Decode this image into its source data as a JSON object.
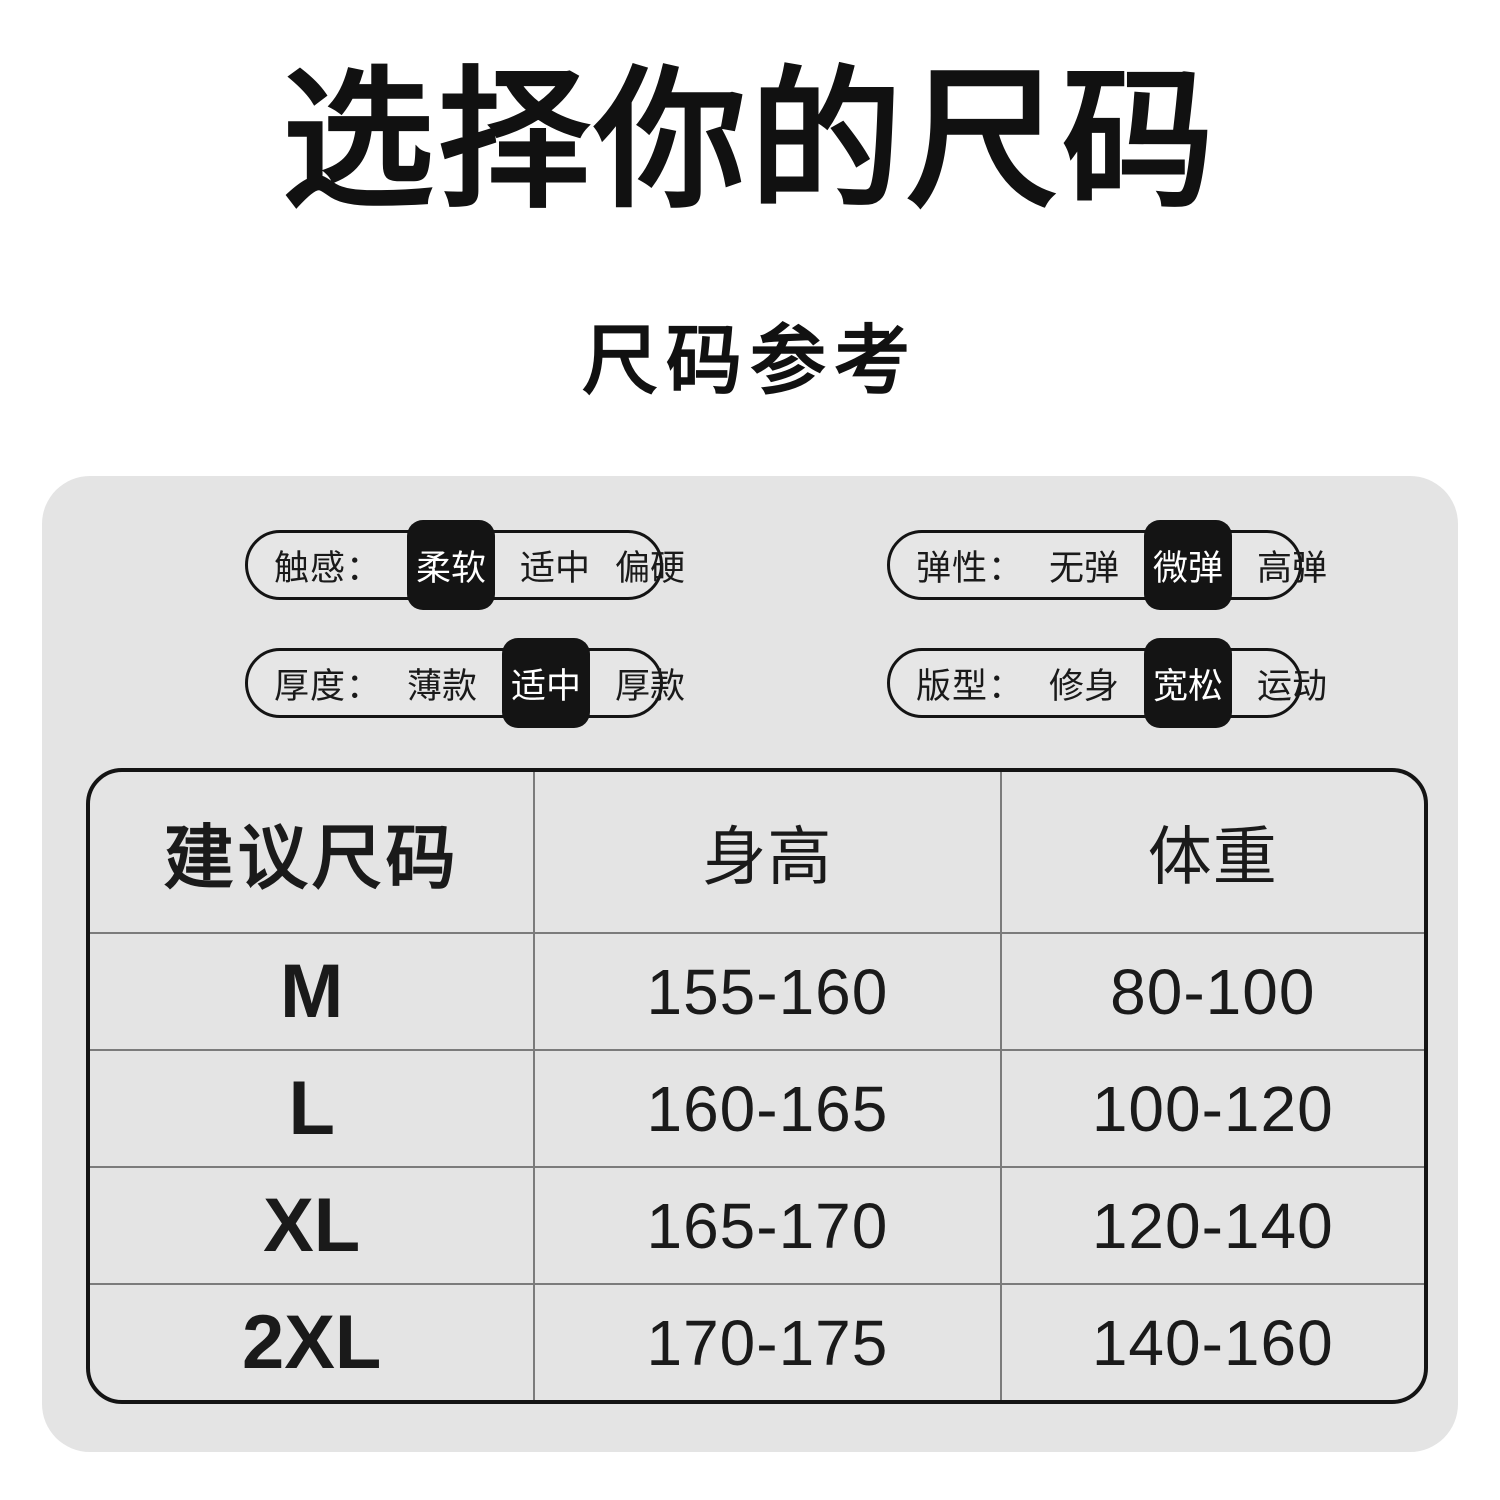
{
  "page": {
    "title": "选择你的尺码",
    "subtitle": "尺码参考"
  },
  "attributes": [
    {
      "id": "touch",
      "label": "触感：",
      "options": [
        "柔软",
        "适中",
        "偏硬"
      ],
      "selected": 0
    },
    {
      "id": "elasticity",
      "label": "弹性：",
      "options": [
        "无弹",
        "微弹",
        "高弹"
      ],
      "selected": 1
    },
    {
      "id": "thickness",
      "label": "厚度：",
      "options": [
        "薄款",
        "适中",
        "厚款"
      ],
      "selected": 1
    },
    {
      "id": "fit",
      "label": "版型：",
      "options": [
        "修身",
        "宽松",
        "运动"
      ],
      "selected": 1
    }
  ],
  "size_table": {
    "headers": [
      "建议尺码",
      "身高",
      "体重"
    ],
    "rows": [
      [
        "M",
        "155-160",
        "80-100"
      ],
      [
        "L",
        "160-165",
        "100-120"
      ],
      [
        "XL",
        "165-170",
        "120-140"
      ],
      [
        "2XL",
        "170-175",
        "140-160"
      ]
    ]
  },
  "colors": {
    "page_background": "#ffffff",
    "panel_background": "#e4e4e4",
    "selected_chip_background": "#141414",
    "selected_chip_text": "#ffffff",
    "text": "#1a1a1a",
    "table_divider": "#7b7b7b",
    "table_border": "#141414"
  }
}
